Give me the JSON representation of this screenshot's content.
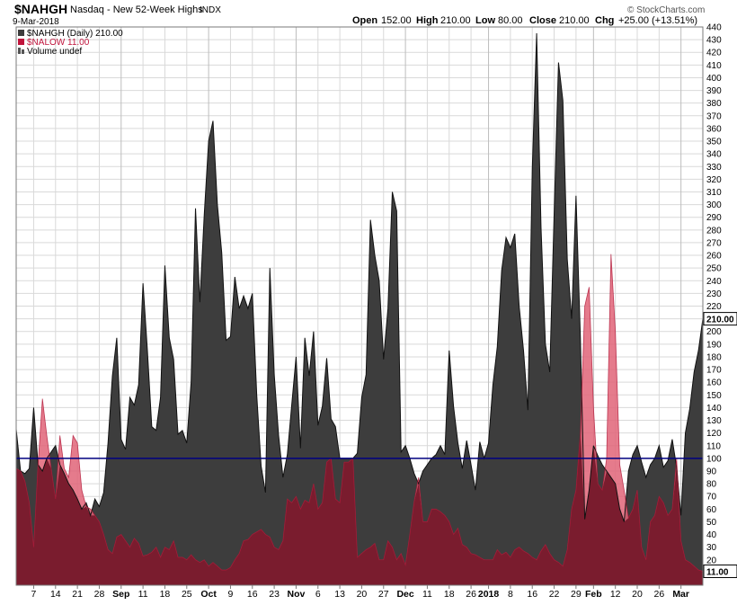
{
  "header": {
    "symbol": "$NAHGH",
    "description": "Nasdaq - New 52-Week Highs",
    "exchange": "INDX",
    "date": "9-Mar-2018",
    "open_label": "Open",
    "open_value": "152.00",
    "high_label": "High",
    "high_value": "210.00",
    "low_label": "Low",
    "low_value": "80.00",
    "close_label": "Close",
    "close_value": "210.00",
    "chg_label": "Chg",
    "chg_value": "+25.00 (+13.51%)",
    "watermark": "© StockCharts.com"
  },
  "colors": {
    "highs_fill": "#3d3d3d",
    "highs_line": "#111111",
    "lows_fill": "#e06478",
    "overlap_fill": "#7a1c2e",
    "reference_line": "#000080",
    "grid": "#d9d9d9",
    "lows_text": "#c0143c"
  },
  "chart_data": {
    "type": "area",
    "ylim": [
      0,
      440
    ],
    "y_ticks": [
      20,
      30,
      40,
      50,
      60,
      70,
      80,
      90,
      100,
      110,
      120,
      130,
      140,
      150,
      160,
      170,
      180,
      190,
      200,
      210,
      220,
      230,
      240,
      250,
      260,
      270,
      280,
      290,
      300,
      310,
      320,
      330,
      340,
      350,
      360,
      370,
      380,
      390,
      400,
      410,
      420,
      430,
      440
    ],
    "x_tick_labels": [
      "7",
      "14",
      "21",
      "28",
      "Sep",
      "11",
      "18",
      "25",
      "Oct",
      "9",
      "16",
      "23",
      "Nov",
      "6",
      "13",
      "20",
      "27",
      "Dec",
      "11",
      "18",
      "26",
      "2018",
      "8",
      "16",
      "22",
      "29",
      "Feb",
      "12",
      "20",
      "26",
      "Mar"
    ],
    "x_tick_index": [
      4,
      9,
      14,
      19,
      24,
      29,
      34,
      39,
      44,
      49,
      54,
      59,
      64,
      69,
      74,
      79,
      84,
      89,
      94,
      99,
      104,
      108,
      113,
      118,
      123,
      128,
      132,
      137,
      142,
      147,
      152
    ],
    "major_tick_labels": [
      "Sep",
      "Oct",
      "Nov",
      "Dec",
      "2018",
      "Feb",
      "Mar"
    ],
    "reference_line": 100,
    "current_labels": {
      "highs": "210.00",
      "lows": "11.00"
    },
    "legend": [
      {
        "label": "$NAHGH (Daily) 210.00"
      },
      {
        "label": "$NALOW 11.00"
      },
      {
        "label": "Volume undef"
      }
    ],
    "series": [
      {
        "name": "$NAHGH",
        "values": [
          123,
          90,
          88,
          92,
          140,
          95,
          90,
          100,
          105,
          110,
          95,
          88,
          80,
          75,
          68,
          60,
          65,
          55,
          68,
          62,
          73,
          112,
          165,
          195,
          115,
          107,
          148,
          142,
          158,
          238,
          185,
          125,
          122,
          148,
          252,
          195,
          178,
          119,
          122,
          112,
          160,
          297,
          223,
          292,
          350,
          366,
          300,
          262,
          193,
          196,
          243,
          218,
          228,
          218,
          230,
          150,
          94,
          73,
          250,
          166,
          118,
          85,
          103,
          142,
          180,
          108,
          195,
          165,
          200,
          126,
          141,
          179,
          131,
          125,
          100,
          100,
          100,
          100,
          104,
          148,
          166,
          288,
          260,
          240,
          178,
          218,
          310,
          295,
          105,
          110,
          100,
          88,
          80,
          90,
          95,
          100,
          103,
          110,
          103,
          185,
          141,
          112,
          92,
          114,
          95,
          75,
          113,
          100,
          112,
          158,
          188,
          248,
          274,
          266,
          277,
          220,
          185,
          138,
          328,
          435,
          282,
          190,
          168,
          293,
          412,
          382,
          257,
          210,
          307,
          195,
          52,
          75,
          110,
          102,
          95,
          90,
          85,
          80,
          60,
          50,
          90,
          103,
          110,
          97,
          85,
          95,
          100,
          110,
          93,
          98,
          115,
          93,
          55,
          120,
          139,
          168,
          185,
          210
        ]
      },
      {
        "name": "$NALOW",
        "values": [
          92,
          90,
          82,
          65,
          30,
          95,
          147,
          118,
          92,
          68,
          118,
          92,
          85,
          118,
          112,
          75,
          62,
          60,
          55,
          50,
          40,
          28,
          25,
          38,
          40,
          35,
          30,
          37,
          33,
          23,
          24,
          26,
          30,
          22,
          30,
          28,
          35,
          22,
          22,
          20,
          24,
          20,
          18,
          20,
          15,
          18,
          15,
          12,
          12,
          14,
          20,
          25,
          35,
          36,
          40,
          42,
          44,
          40,
          38,
          30,
          28,
          35,
          68,
          65,
          70,
          60,
          67,
          65,
          80,
          60,
          65,
          97,
          100,
          68,
          65,
          97,
          97,
          100,
          22,
          25,
          28,
          30,
          33,
          20,
          20,
          35,
          30,
          20,
          25,
          16,
          40,
          66,
          85,
          50,
          50,
          60,
          60,
          58,
          55,
          50,
          40,
          45,
          32,
          30,
          25,
          24,
          22,
          20,
          20,
          20,
          28,
          24,
          26,
          22,
          28,
          30,
          27,
          25,
          22,
          20,
          27,
          32,
          25,
          20,
          18,
          15,
          28,
          60,
          75,
          120,
          220,
          235,
          140,
          80,
          75,
          100,
          261,
          200,
          95,
          75,
          53,
          60,
          75,
          30,
          20,
          50,
          55,
          70,
          65,
          55,
          60,
          100,
          35,
          20,
          18,
          15,
          12,
          11
        ]
      }
    ]
  }
}
